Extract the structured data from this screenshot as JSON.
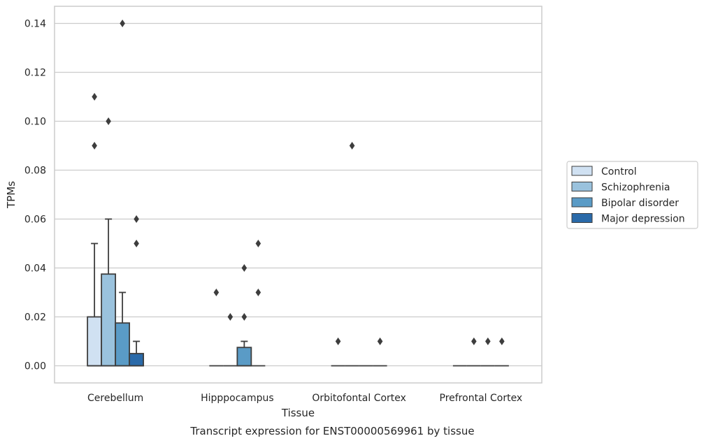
{
  "chart_data": {
    "type": "box",
    "caption": "Transcript expression for ENST00000569961 by tissue",
    "xlabel": "Tissue",
    "ylabel": "TPMs",
    "ylim": [
      -0.007,
      0.147
    ],
    "yticks": [
      0.0,
      0.02,
      0.04,
      0.06,
      0.08,
      0.1,
      0.12,
      0.14
    ],
    "ytick_labels": [
      "0.00",
      "0.02",
      "0.04",
      "0.06",
      "0.08",
      "0.10",
      "0.12",
      "0.14"
    ],
    "grid": true,
    "legend_position": "right",
    "categories": [
      "Cerebellum",
      "Hipppocampus",
      "Orbitofontal Cortex",
      "Prefrontal Cortex"
    ],
    "series": [
      {
        "name": "Control",
        "color": "#d0e1f2",
        "boxes": [
          {
            "q1": 0.0,
            "median": 0.0,
            "q3": 0.02,
            "whisker_low": 0.0,
            "whisker_high": 0.05,
            "outliers": [
              0.09,
              0.11
            ]
          },
          {
            "q1": 0.0,
            "median": 0.0,
            "q3": 0.0,
            "whisker_low": 0.0,
            "whisker_high": 0.0,
            "outliers": [
              0.03
            ]
          },
          {
            "q1": 0.0,
            "median": 0.0,
            "q3": 0.0,
            "whisker_low": 0.0,
            "whisker_high": 0.0,
            "outliers": [
              0.01
            ]
          },
          {
            "q1": 0.0,
            "median": 0.0,
            "q3": 0.0,
            "whisker_low": 0.0,
            "whisker_high": 0.0,
            "outliers": []
          }
        ]
      },
      {
        "name": "Schizophrenia",
        "color": "#9ac2dd",
        "boxes": [
          {
            "q1": 0.0,
            "median": 0.0,
            "q3": 0.0375,
            "whisker_low": 0.0,
            "whisker_high": 0.06,
            "outliers": [
              0.1
            ]
          },
          {
            "q1": 0.0,
            "median": 0.0,
            "q3": 0.0,
            "whisker_low": 0.0,
            "whisker_high": 0.0,
            "outliers": [
              0.02
            ]
          },
          {
            "q1": 0.0,
            "median": 0.0,
            "q3": 0.0,
            "whisker_low": 0.0,
            "whisker_high": 0.0,
            "outliers": [
              0.09
            ]
          },
          {
            "q1": 0.0,
            "median": 0.0,
            "q3": 0.0,
            "whisker_low": 0.0,
            "whisker_high": 0.0,
            "outliers": [
              0.01
            ]
          }
        ]
      },
      {
        "name": "Bipolar disorder",
        "color": "#5a9bc6",
        "boxes": [
          {
            "q1": 0.0,
            "median": 0.0,
            "q3": 0.0175,
            "whisker_low": 0.0,
            "whisker_high": 0.03,
            "outliers": [
              0.14
            ]
          },
          {
            "q1": 0.0,
            "median": 0.0,
            "q3": 0.0075,
            "whisker_low": 0.0,
            "whisker_high": 0.01,
            "outliers": [
              0.02,
              0.04
            ]
          },
          {
            "q1": 0.0,
            "median": 0.0,
            "q3": 0.0,
            "whisker_low": 0.0,
            "whisker_high": 0.0,
            "outliers": []
          },
          {
            "q1": 0.0,
            "median": 0.0,
            "q3": 0.0,
            "whisker_low": 0.0,
            "whisker_high": 0.0,
            "outliers": [
              0.01
            ]
          }
        ]
      },
      {
        "name": "Major depression",
        "color": "#2a6aa9",
        "boxes": [
          {
            "q1": 0.0,
            "median": 0.0,
            "q3": 0.005,
            "whisker_low": 0.0,
            "whisker_high": 0.01,
            "outliers": [
              0.05,
              0.06
            ]
          },
          {
            "q1": 0.0,
            "median": 0.0,
            "q3": 0.0,
            "whisker_low": 0.0,
            "whisker_high": 0.0,
            "outliers": [
              0.03,
              0.05
            ]
          },
          {
            "q1": 0.0,
            "median": 0.0,
            "q3": 0.0,
            "whisker_low": 0.0,
            "whisker_high": 0.0,
            "outliers": [
              0.01
            ]
          },
          {
            "q1": 0.0,
            "median": 0.0,
            "q3": 0.0,
            "whisker_low": 0.0,
            "whisker_high": 0.0,
            "outliers": [
              0.01
            ]
          }
        ]
      }
    ]
  }
}
